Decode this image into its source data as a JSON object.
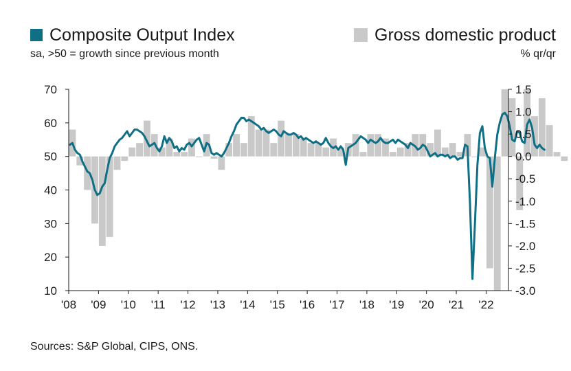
{
  "chart_data": {
    "type": "bar+line",
    "title": "",
    "legend": [
      {
        "label": "Composite Output Index",
        "note": "sa, >50 = growth since previous month",
        "color": "#0e6f85",
        "kind": "line"
      },
      {
        "label": "Gross domestic product",
        "note": "% qr/qr",
        "color": "#c9c9c9",
        "kind": "bar"
      }
    ],
    "source": "Sources: S&P Global, CIPS, ONS.",
    "x_ticks": [
      "'08",
      "'09",
      "'10",
      "'11",
      "'12",
      "'13",
      "'14",
      "'15",
      "'16",
      "'17",
      "'18",
      "'19",
      "'20",
      "'21",
      "'22"
    ],
    "y_left": {
      "range": [
        10,
        70
      ],
      "ticks": [
        "70",
        "60",
        "50",
        "40",
        "30",
        "20",
        "10"
      ]
    },
    "y_right": {
      "range": [
        -3.0,
        1.5
      ],
      "ticks": [
        "1.5",
        "1.0",
        "0.5",
        "0.0",
        "-0.5",
        "-1.0",
        "-1.5",
        "-2.0",
        "-2.5",
        "-3.0"
      ]
    },
    "gdp_series": {
      "name": "Gross domestic product",
      "start": "2008Q1",
      "values": [
        0.6,
        -0.2,
        -0.75,
        -1.5,
        -2.0,
        -1.8,
        -0.3,
        -0.1,
        0.2,
        0.3,
        0.8,
        0.5,
        0.2,
        0.4,
        0.1,
        0.1,
        0.4,
        0.0,
        0.5,
        -0.05,
        -0.3,
        0.3,
        0.5,
        0.3,
        0.9,
        0.6,
        0.6,
        0.3,
        0.8,
        0.5,
        0.5,
        0.4,
        0.3,
        0.3,
        0.2,
        0.4,
        0.2,
        0.3,
        0.5,
        0.1,
        0.5,
        0.5,
        0.4,
        0.1,
        0.2,
        0.3,
        0.5,
        0.5,
        0.3,
        0.6,
        0.2,
        0.3,
        0.1,
        0.5,
        0.0,
        0.2,
        -2.5,
        -19.4,
        16.9,
        1.3,
        -1.2,
        5.6,
        0.9,
        1.3,
        0.7,
        0.1,
        -0.1
      ]
    },
    "pmi_series": {
      "name": "Composite Output Index",
      "start": "2008-01",
      "values": [
        53.5,
        54.0,
        52.0,
        51.0,
        50.5,
        48.5,
        47.0,
        45.5,
        45.0,
        43.0,
        40.0,
        38.5,
        39.0,
        41.0,
        42.0,
        46.0,
        49.5,
        51.0,
        53.0,
        54.0,
        55.0,
        55.5,
        56.5,
        57.5,
        56.0,
        57.0,
        58.0,
        58.0,
        57.5,
        57.0,
        56.0,
        54.5,
        53.0,
        53.5,
        54.0,
        52.5,
        51.5,
        53.0,
        56.0,
        54.0,
        55.5,
        54.5,
        52.5,
        53.0,
        51.5,
        52.5,
        52.0,
        53.5,
        54.0,
        53.0,
        54.0,
        55.0,
        55.5,
        53.5,
        51.5,
        54.0,
        53.5,
        51.0,
        50.5,
        51.0,
        50.5,
        50.0,
        51.0,
        52.5,
        54.0,
        56.0,
        57.5,
        59.5,
        60.5,
        61.5,
        61.5,
        60.5,
        61.0,
        60.5,
        60.0,
        59.5,
        59.0,
        58.0,
        58.5,
        57.5,
        57.0,
        57.5,
        58.0,
        57.5,
        56.5,
        56.0,
        57.5,
        57.0,
        56.5,
        56.5,
        57.0,
        56.5,
        55.5,
        56.0,
        55.0,
        55.5,
        55.0,
        54.5,
        54.0,
        54.5,
        54.0,
        53.5,
        54.0,
        55.5,
        54.0,
        53.0,
        52.5,
        53.0,
        52.0,
        53.0,
        52.0,
        47.5,
        52.5,
        53.0,
        53.5,
        54.0,
        55.0,
        56.0,
        55.5,
        55.0,
        54.0,
        55.0,
        54.5,
        54.0,
        54.5,
        55.5,
        54.5,
        54.0,
        54.0,
        54.5,
        55.0,
        54.0,
        55.0,
        54.5,
        54.0,
        53.5,
        52.5,
        54.0,
        53.5,
        53.0,
        52.0,
        52.5,
        53.5,
        53.0,
        51.5,
        50.0,
        50.5,
        51.0,
        50.0,
        50.5,
        50.5,
        50.0,
        50.5,
        49.5,
        50.0,
        50.0,
        49.0,
        49.5,
        49.5,
        53.5,
        53.0,
        36.0,
        13.5,
        30.0,
        47.5,
        57.0,
        59.0,
        52.5,
        50.0,
        49.5,
        41.0,
        49.5,
        56.5,
        60.0,
        62.5,
        63.0,
        62.0,
        59.0,
        55.0,
        54.5,
        57.5,
        57.0,
        54.5,
        54.0,
        59.5,
        61.0,
        58.5,
        53.5,
        52.5,
        53.5,
        52.5,
        52.0
      ]
    }
  }
}
